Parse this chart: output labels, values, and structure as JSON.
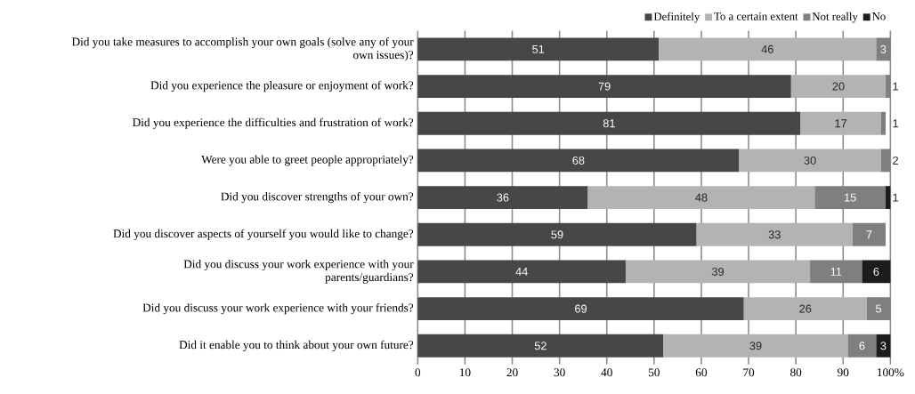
{
  "chart_data": {
    "type": "bar",
    "orientation": "horizontal",
    "stacked": true,
    "categories": [
      "Did you take measures to accomplish your own goals (solve any of your own issues)?",
      "Did you experience the pleasure or enjoyment of work?",
      "Did you experience the difficulties and frustration of work?",
      "Were you able to greet people appropriately?",
      "Did you discover strengths of your own?",
      "Did you discover aspects of yourself you would like to change?",
      "Did you discuss your work experience with your parents/guardians?",
      "Did you discuss your work experience with your friends?",
      "Did it enable you to think about your own future?"
    ],
    "series": [
      {
        "name": "Definitely",
        "color": "#474747",
        "values": [
          51,
          79,
          81,
          68,
          36,
          59,
          44,
          69,
          52
        ]
      },
      {
        "name": "To a certain extent",
        "color": "#b3b3b3",
        "values": [
          46,
          20,
          17,
          30,
          48,
          33,
          39,
          26,
          39
        ]
      },
      {
        "name": "Not really",
        "color": "#7f7f7f",
        "values": [
          3,
          1,
          1,
          2,
          15,
          7,
          11,
          5,
          6
        ]
      },
      {
        "name": "No",
        "color": "#1c1c1c",
        "values": [
          null,
          null,
          null,
          null,
          1,
          null,
          6,
          null,
          3
        ]
      }
    ],
    "xlim": [
      0,
      100
    ],
    "xticks": [
      0,
      10,
      20,
      30,
      40,
      50,
      60,
      70,
      80,
      90,
      {
        "value": 100,
        "label": "100%"
      }
    ],
    "grid": "x",
    "legend": "top right",
    "data_labels": true
  }
}
